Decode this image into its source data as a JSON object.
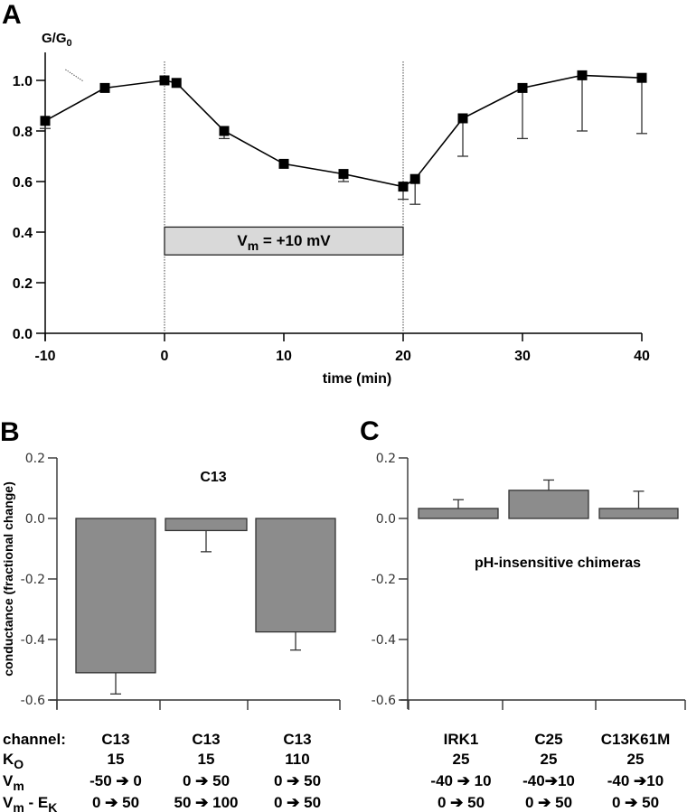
{
  "chart_data": [
    {
      "panel": "A",
      "type": "line",
      "ylabel": "G/G0",
      "ylabel_main": "G/G",
      "ylabel_sub": "0",
      "xlabel": "time (min)",
      "xlim": [
        -10,
        40
      ],
      "ylim": [
        0.0,
        1.1
      ],
      "xticks": [
        "-10",
        "0",
        "10",
        "20",
        "30",
        "40"
      ],
      "xtick_values": [
        -10,
        0,
        10,
        20,
        30,
        40
      ],
      "yticks": [
        "0.0",
        "0.2",
        "0.4",
        "0.6",
        "0.8",
        "1.0"
      ],
      "ytick_values": [
        0.0,
        0.2,
        0.4,
        0.6,
        0.8,
        1.0
      ],
      "series": [
        {
          "name": "G/G0",
          "x": [
            -10,
            -5,
            0,
            1,
            5,
            10,
            15,
            20,
            21,
            25,
            30,
            35,
            40
          ],
          "y": [
            0.84,
            0.97,
            1.0,
            0.99,
            0.8,
            0.67,
            0.63,
            0.58,
            0.61,
            0.85,
            0.97,
            1.02,
            1.01
          ],
          "error_low": [
            0.81,
            null,
            null,
            null,
            0.77,
            null,
            0.6,
            0.53,
            0.51,
            0.7,
            0.77,
            0.8,
            0.79
          ]
        }
      ],
      "vlines_dotted": [
        0,
        20
      ],
      "annotation_box": {
        "x_start": 0,
        "x_end": 20,
        "y_bottom": 0.31,
        "y_top": 0.42,
        "label_main": "V",
        "label_sub": "m",
        "label_rest": " = +10 mV"
      },
      "stray_mark_note": "dotted diagonal mark near x=-8, y=1.03"
    },
    {
      "panel": "B",
      "type": "bar",
      "title": "C13",
      "ylabel": "conductance (fractional change)",
      "ylim": [
        -0.6,
        0.2
      ],
      "yticks": [
        "0.2",
        "0.0",
        "-0.2",
        "-0.4",
        "-0.6"
      ],
      "ytick_values": [
        0.2,
        0.0,
        -0.2,
        -0.4,
        -0.6
      ],
      "categories": [
        "C13 / 15 / -50→0",
        "C13 / 15 / 0→50",
        "C13 / 110 / 0→50"
      ],
      "values": [
        -0.51,
        -0.04,
        -0.375
      ],
      "error_ends": [
        -0.58,
        -0.11,
        -0.435
      ],
      "bar_color": "#8c8c8c"
    },
    {
      "panel": "C",
      "type": "bar",
      "title": "pH-insensitive chimeras",
      "ylim": [
        -0.6,
        0.2
      ],
      "yticks": [
        "0.2",
        "0.0",
        "-0.2",
        "-0.4",
        "-0.6"
      ],
      "ytick_values": [
        0.2,
        0.0,
        -0.2,
        -0.4,
        -0.6
      ],
      "categories": [
        "IRK1",
        "C25",
        "C13K61M"
      ],
      "values": [
        0.033,
        0.093,
        0.033
      ],
      "error_ends": [
        0.062,
        0.127,
        0.09
      ],
      "bar_color": "#8c8c8c"
    }
  ],
  "panel_labels": {
    "a": "A",
    "b": "B",
    "c": "C"
  },
  "table": {
    "row_labels": {
      "channel": "channel:",
      "ko_main": "K",
      "ko_sub": "O",
      "vm_main": "V",
      "vm_sub": "m",
      "vmek_main": "V",
      "vmek_sub": "m",
      "vmek_mid": " - E",
      "vmek_sub2": "K"
    },
    "columns": [
      {
        "channel": "C13",
        "ko": "15",
        "vm": "-50 ➔ 0",
        "vm_ek": "0  ➔ 50"
      },
      {
        "channel": "C13",
        "ko": "15",
        "vm": "0 ➔ 50",
        "vm_ek": "50 ➔ 100"
      },
      {
        "channel": "C13",
        "ko": "110",
        "vm": "0 ➔  50",
        "vm_ek": "0 ➔  50"
      },
      {
        "channel": "IRK1",
        "ko": "25",
        "vm": "-40 ➔ 10",
        "vm_ek": "0 ➔ 50"
      },
      {
        "channel": "C25",
        "ko": "25",
        "vm": "-40➔10",
        "vm_ek": "0 ➔ 50"
      },
      {
        "channel": "C13K61M",
        "ko": "25",
        "vm": "-40 ➔10",
        "vm_ek": "0 ➔ 50"
      }
    ]
  }
}
